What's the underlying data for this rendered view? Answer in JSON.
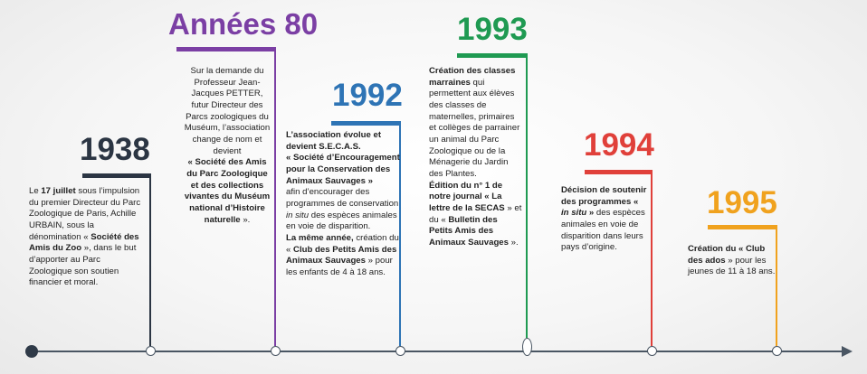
{
  "colors": {
    "c1938": "#2b3543",
    "c80": "#7b3fa4",
    "c1992": "#2e74b5",
    "c1993": "#1f9a52",
    "c1994": "#e0403a",
    "c1995": "#f0a21e",
    "axis": "#4a5663"
  },
  "milestones": [
    {
      "year": "1938",
      "paragraphs": [
        [
          [
            "",
            " Le "
          ],
          [
            "b",
            "17 juillet"
          ],
          [
            "",
            " sous l’impulsion du premier Directeur du Parc Zoologique de Paris, Achille URBAIN, sous la dénomination « "
          ],
          [
            "b",
            "Société des Amis du Zoo"
          ],
          [
            "",
            " », dans le but d’apporter au Parc Zoologique son soutien financier et moral."
          ]
        ]
      ]
    },
    {
      "year": "Années 80",
      "paragraphs": [
        [
          [
            "",
            "Sur la demande du Professeur Jean-Jacques PETTER, futur Directeur des Parcs zoologiques du Muséum, l’association change de nom et devient"
          ]
        ],
        [
          [
            "b",
            "« Société des Amis du Parc Zoologique et des collections vivantes du Muséum national d’Histoire naturelle"
          ],
          [
            "",
            " »."
          ]
        ]
      ]
    },
    {
      "year": "1992",
      "paragraphs": [
        [
          [
            "b",
            "L’association évolue  et devient  S.E.C.A.S."
          ]
        ],
        [
          [
            "b",
            "« Société d’Encouragement pour la Conservation des Animaux Sauvages »"
          ]
        ],
        [
          [
            "",
            " afin d’encourager des programmes de conservation  "
          ],
          [
            "i",
            "in situ"
          ],
          [
            "",
            " des espèces animales en voie de disparition."
          ]
        ],
        [
          [
            "b",
            "La même année,"
          ],
          [
            "",
            " création du « "
          ],
          [
            "b",
            "Club des Petits Amis des Animaux Sauvages"
          ],
          [
            "",
            " »  pour les enfants de 4 à 18 ans."
          ]
        ]
      ]
    },
    {
      "year": "1993",
      "paragraphs": [
        [
          [
            "b",
            "Création des classes marraines"
          ],
          [
            "",
            " qui permettent aux élèves des classes de maternelles, primaires et collèges de parrainer un animal du Parc Zoologique ou de la Ménagerie du Jardin des Plantes."
          ]
        ],
        [
          [
            "b",
            "Édition du n° 1 de notre journal « La lettre de la SECAS"
          ],
          [
            "",
            " » et du « "
          ],
          [
            "b",
            "Bulletin des Petits Amis des Animaux Sauvages"
          ],
          [
            "",
            " »."
          ]
        ]
      ]
    },
    {
      "year": "1994",
      "paragraphs": [
        [
          [
            "b",
            "Décision de soutenir des programmes « "
          ],
          [
            "bi",
            "in situ"
          ],
          [
            "b",
            " »"
          ],
          [
            "",
            " des espèces animales en voie de disparition dans leurs pays d’origine."
          ]
        ]
      ]
    },
    {
      "year": "1995",
      "paragraphs": [
        [
          [
            "b",
            "Création du « Club des ados"
          ],
          [
            "",
            " » pour les jeunes de 11 à 18 ans."
          ]
        ]
      ]
    }
  ]
}
